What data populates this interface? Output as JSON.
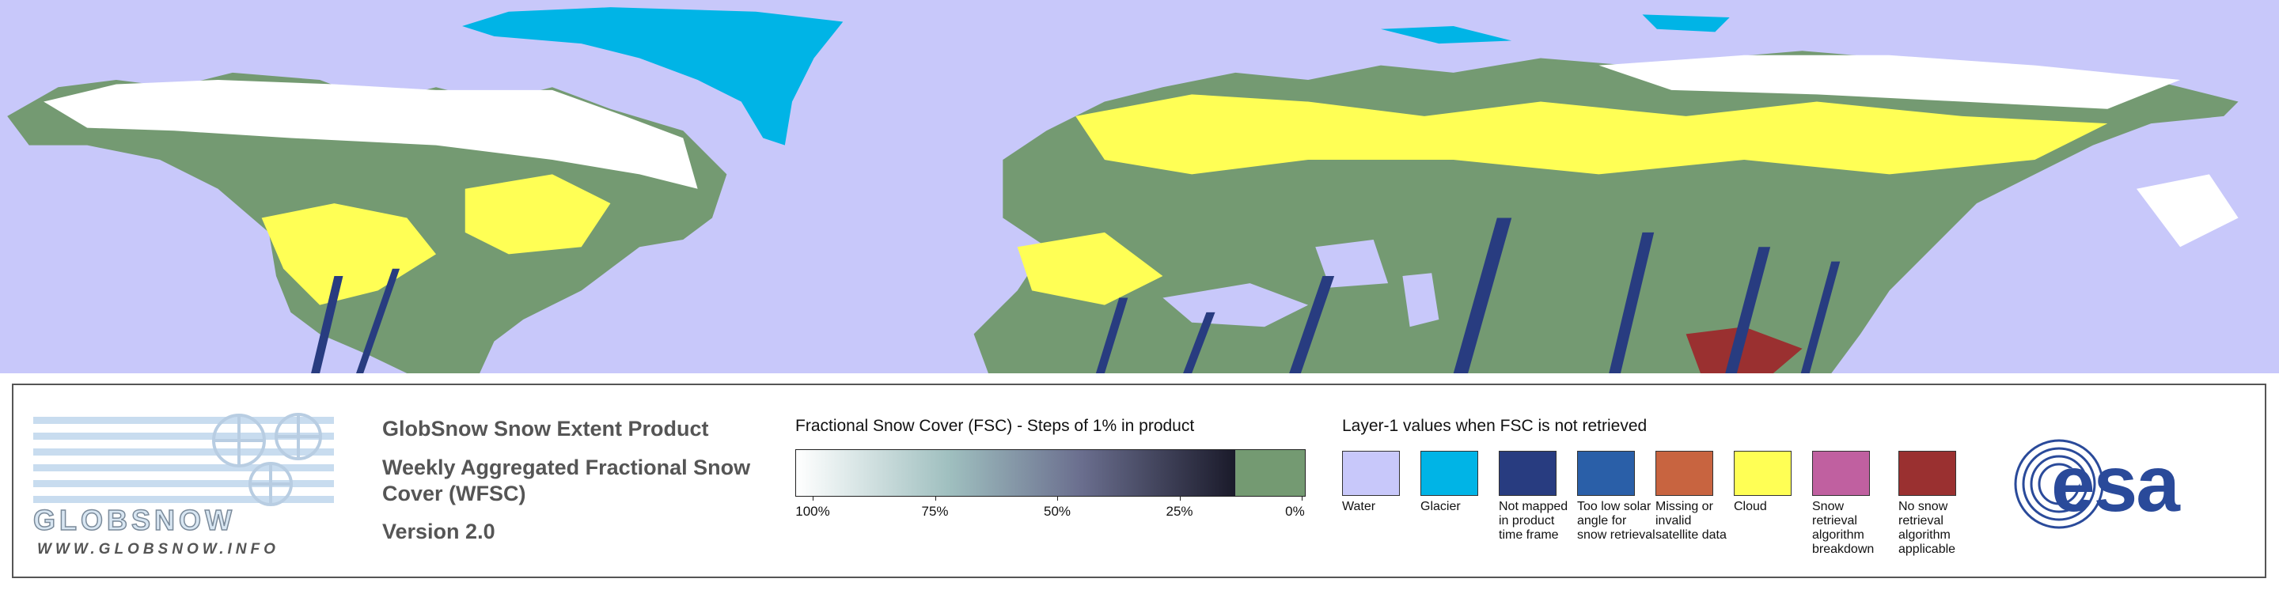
{
  "logo": {
    "name": "GLOBSNOW",
    "url": "WWW.GLOBSNOW.INFO",
    "agency": "esa"
  },
  "product": {
    "title": "GlobSnow Snow Extent Product",
    "subtitle": "Weekly Aggregated Fractional Snow Cover (WFSC)",
    "version": "Version 2.0"
  },
  "colorbar": {
    "title": "Fractional Snow Cover (FSC) - Steps of 1% in product",
    "ticks": [
      {
        "value": 100,
        "label": "100%"
      },
      {
        "value": 75,
        "label": "75%"
      },
      {
        "value": 50,
        "label": "50%"
      },
      {
        "value": 25,
        "label": "25%"
      },
      {
        "value": 0,
        "label": "0%"
      }
    ]
  },
  "layer1": {
    "title": "Layer-1 values when FSC is not retrieved",
    "items": [
      {
        "label": "Water",
        "color": "#c8c8fa"
      },
      {
        "label": "Glacier",
        "color": "#00b4e6"
      },
      {
        "label": "Not mapped in product time frame",
        "color": "#283c80"
      },
      {
        "label": "Too low solar angle for snow retrieval",
        "color": "#2a5fa8"
      },
      {
        "label": "Missing or invalid satellite data",
        "color": "#c86440"
      },
      {
        "label": "Cloud",
        "color": "#ffff55"
      },
      {
        "label": "Snow retrieval algorithm breakdown",
        "color": "#c060a0"
      },
      {
        "label": "No snow retrieval algorithm applicable",
        "color": "#9a3030"
      }
    ]
  }
}
